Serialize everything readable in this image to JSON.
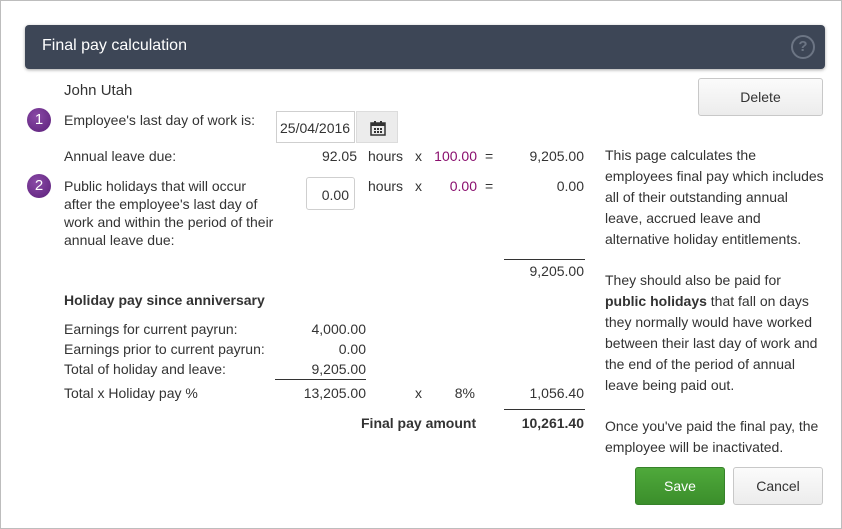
{
  "dialog": {
    "title": "Final pay calculation",
    "help_icon": "?",
    "employee_name": "John Utah",
    "delete_label": "Delete"
  },
  "step1": {
    "number": "1",
    "label": "Employee's last day of work is:",
    "date_value": "25/04/2016",
    "calendar_icon": "calendar-icon"
  },
  "annual_leave": {
    "label": "Annual leave due:",
    "hours": "92.05",
    "unit": "hours",
    "times": "x",
    "rate": "100.00",
    "equals": "=",
    "amount": "9,205.00"
  },
  "step2": {
    "number": "2",
    "label_lines": [
      "Public holidays that will occur",
      "after the employee's last day of",
      "work and within the period of their",
      "annual leave due:"
    ],
    "hours_value": "0.00",
    "unit": "hours",
    "times": "x",
    "rate": "0.00",
    "equals": "=",
    "amount": "0.00"
  },
  "subtotal": "9,205.00",
  "holiday_pay": {
    "heading": "Holiday pay since anniversary",
    "rows": [
      {
        "label": "Earnings for current payrun:",
        "value": "4,000.00"
      },
      {
        "label": "Earnings prior to current payrun:",
        "value": "0.00"
      },
      {
        "label": "Total of holiday and leave:",
        "value": "9,205.00"
      }
    ],
    "total_label": "Total x Holiday pay %",
    "total_value": "13,205.00",
    "times": "x",
    "percent": "8%",
    "result": "1,056.40"
  },
  "final": {
    "label": "Final pay amount",
    "amount": "10,261.40"
  },
  "info": {
    "para1_lines": [
      "This page calculates the",
      "employees final pay which includes",
      "all of their outstanding annual",
      "leave, accrued leave and",
      "alternative holiday entitlements."
    ],
    "para2_line1": "They should also be paid for",
    "para2_bold": "public holidays",
    "para2_rest": " that fall on days",
    "para2_lines": [
      "they normally would have worked",
      "between their last day of work and",
      "the end of the period of annual",
      "leave being paid out."
    ],
    "para3_lines": [
      "Once you've paid the final pay, the",
      "employee will be inactivated."
    ]
  },
  "buttons": {
    "save_label": "Save",
    "cancel_label": "Cancel"
  },
  "colors": {
    "header_bg": "#3d4656",
    "step_badge": "#6b2a8a",
    "rate_text": "#8a0f6e",
    "save_green": "#44a034"
  }
}
